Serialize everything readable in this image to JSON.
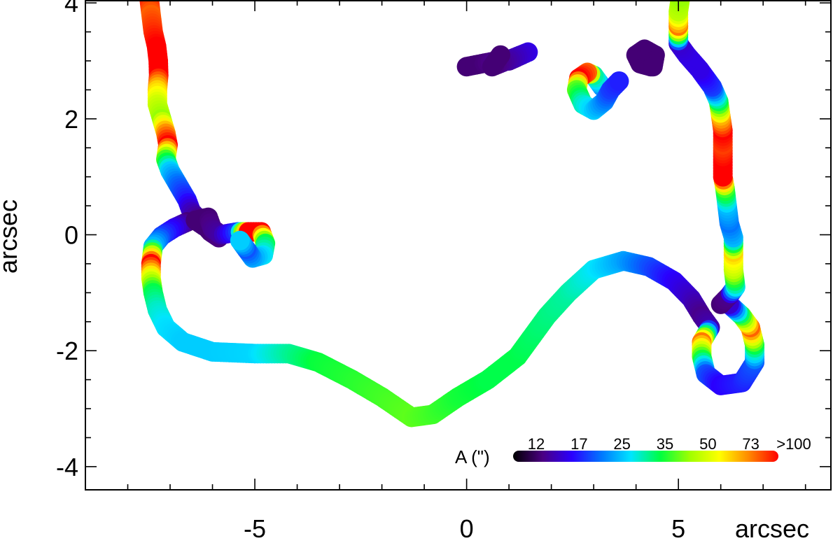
{
  "chart_data": {
    "type": "scatter",
    "xlabel": "arcsec",
    "ylabel": "arcsec",
    "xlim": [
      -9,
      8.6
    ],
    "ylim": [
      -4.4,
      4.05
    ],
    "x_ticks": [
      -5,
      0,
      5
    ],
    "x_tick_labels": [
      "-5",
      "0",
      "5"
    ],
    "y_ticks": [
      -4,
      -2,
      0,
      2,
      4
    ],
    "y_tick_labels": [
      "-4",
      "-2",
      "0",
      "2",
      "4"
    ],
    "grid": false,
    "colorbar": {
      "title": "A (\")",
      "tick_labels": [
        "12",
        "17",
        "25",
        "35",
        "50",
        "73",
        ">100"
      ],
      "colors": [
        "#000000",
        "#4b0082",
        "#2a00ff",
        "#0077ff",
        "#00e5ff",
        "#00ff40",
        "#a0ff00",
        "#ffff00",
        "#ff8800",
        "#ff0000"
      ],
      "placement": "bottom-right"
    },
    "series": [
      {
        "points": [
          [
            -7.5,
            4.1,
            1.0
          ],
          [
            -7.45,
            3.8,
            0.92
          ],
          [
            -7.4,
            3.5,
            0.96
          ],
          [
            -7.32,
            3.25,
            1.0
          ],
          [
            -7.28,
            3.0,
            1.0
          ],
          [
            -7.27,
            2.75,
            1.0
          ],
          [
            -7.3,
            2.5,
            0.82
          ],
          [
            -7.3,
            2.25,
            0.72
          ],
          [
            -7.2,
            2.0,
            0.66
          ],
          [
            -7.1,
            1.75,
            0.88
          ],
          [
            -7.05,
            1.55,
            1.0
          ],
          [
            -7.1,
            1.3,
            0.6
          ],
          [
            -7.0,
            1.1,
            0.42
          ],
          [
            -6.8,
            0.85,
            0.32
          ],
          [
            -6.6,
            0.6,
            0.25
          ],
          [
            -6.5,
            0.4,
            0.17
          ],
          [
            -6.25,
            0.22,
            0.1
          ],
          [
            -6.05,
            0.05,
            0.1
          ],
          [
            -5.85,
            -0.05,
            0.11
          ]
        ]
      },
      {
        "points": [
          [
            -6.6,
            0.22,
            0.1
          ],
          [
            -6.9,
            0.12,
            0.2
          ],
          [
            -7.2,
            -0.02,
            0.28
          ],
          [
            -7.4,
            -0.2,
            0.4
          ],
          [
            -7.45,
            -0.5,
            1.0
          ],
          [
            -7.45,
            -0.75,
            0.75
          ],
          [
            -7.4,
            -1.0,
            0.55
          ],
          [
            -7.3,
            -1.3,
            0.48
          ],
          [
            -7.1,
            -1.6,
            0.44
          ],
          [
            -6.7,
            -1.85,
            0.42
          ],
          [
            -6.0,
            -2.02,
            0.42
          ],
          [
            -5.0,
            -2.05,
            0.43
          ],
          [
            -4.2,
            -2.05,
            0.5
          ],
          [
            -3.5,
            -2.2,
            0.56
          ],
          [
            -2.7,
            -2.5,
            0.58
          ],
          [
            -2.0,
            -2.8,
            0.6
          ],
          [
            -1.3,
            -3.15,
            0.62
          ],
          [
            -0.8,
            -3.1,
            0.6
          ],
          [
            -0.2,
            -2.8,
            0.57
          ],
          [
            0.5,
            -2.5,
            0.55
          ],
          [
            1.2,
            -2.1,
            0.55
          ],
          [
            1.9,
            -1.4,
            0.52
          ],
          [
            2.4,
            -1.0,
            0.5
          ],
          [
            3.0,
            -0.6,
            0.45
          ],
          [
            3.7,
            -0.45,
            0.38
          ],
          [
            4.3,
            -0.55,
            0.3
          ],
          [
            4.9,
            -0.8,
            0.22
          ],
          [
            5.3,
            -1.1,
            0.17
          ],
          [
            5.55,
            -1.4,
            0.12
          ],
          [
            5.75,
            -1.6,
            0.15
          ],
          [
            5.55,
            -1.85,
            0.9
          ],
          [
            5.55,
            -2.1,
            0.62
          ],
          [
            5.65,
            -2.4,
            0.3
          ],
          [
            6.0,
            -2.6,
            0.22
          ],
          [
            6.5,
            -2.55,
            0.25
          ],
          [
            6.8,
            -2.2,
            0.3
          ],
          [
            6.8,
            -1.9,
            0.55
          ],
          [
            6.7,
            -1.6,
            0.92
          ],
          [
            6.5,
            -1.4,
            0.6
          ],
          [
            6.2,
            -1.2,
            0.18
          ]
        ]
      },
      {
        "points": [
          [
            6.0,
            -1.2,
            0.1
          ],
          [
            6.2,
            -1.05,
            0.12
          ],
          [
            6.35,
            -0.9,
            0.45
          ],
          [
            6.3,
            -0.6,
            0.7
          ],
          [
            6.3,
            -0.3,
            0.82
          ],
          [
            6.3,
            -0.05,
            0.4
          ],
          [
            6.2,
            0.2,
            0.33
          ],
          [
            6.15,
            0.5,
            0.4
          ],
          [
            6.1,
            0.8,
            0.6
          ],
          [
            6.05,
            1.0,
            1.0
          ],
          [
            6.05,
            1.3,
            1.0
          ],
          [
            6.05,
            1.55,
            0.95
          ],
          [
            6.05,
            1.8,
            1.0
          ],
          [
            6.0,
            2.05,
            0.85
          ],
          [
            5.95,
            2.3,
            0.55
          ],
          [
            5.8,
            2.55,
            0.28
          ],
          [
            5.5,
            2.85,
            0.2
          ],
          [
            5.2,
            3.1,
            0.2
          ],
          [
            5.0,
            3.3,
            0.18
          ],
          [
            5.0,
            3.6,
            0.9
          ],
          [
            5.0,
            3.85,
            0.7
          ],
          [
            5.05,
            4.1,
            0.66
          ]
        ]
      },
      {
        "points": [
          [
            4.35,
            2.9,
            0.1
          ],
          [
            4.1,
            2.95,
            0.1
          ],
          [
            4.0,
            3.1,
            0.1
          ],
          [
            4.2,
            3.2,
            0.1
          ],
          [
            4.45,
            3.1,
            0.1
          ],
          [
            4.4,
            2.9,
            0.1
          ]
        ]
      },
      {
        "points": [
          [
            0.0,
            2.9,
            0.1
          ],
          [
            0.35,
            2.95,
            0.1
          ],
          [
            0.7,
            3.0,
            0.12
          ],
          [
            1.0,
            3.0,
            0.13
          ],
          [
            1.3,
            3.1,
            0.15
          ],
          [
            1.45,
            3.15,
            0.2
          ],
          [
            0.6,
            2.9,
            0.1
          ],
          [
            0.8,
            3.1,
            0.1
          ]
        ]
      },
      {
        "points": [
          [
            3.2,
            2.55,
            0.35
          ],
          [
            3.0,
            2.75,
            0.5
          ],
          [
            2.85,
            2.8,
            0.92
          ],
          [
            2.65,
            2.7,
            1.0
          ],
          [
            2.6,
            2.5,
            0.62
          ],
          [
            2.75,
            2.25,
            0.48
          ],
          [
            3.0,
            2.15,
            0.42
          ],
          [
            3.25,
            2.3,
            0.35
          ],
          [
            3.4,
            2.5,
            0.28
          ],
          [
            3.6,
            2.65,
            0.25
          ]
        ]
      },
      {
        "points": [
          [
            -6.2,
            0.15,
            0.1
          ],
          [
            -6.4,
            0.25,
            0.1
          ],
          [
            -6.1,
            0.3,
            0.1
          ],
          [
            -6.0,
            0.1,
            0.12
          ],
          [
            -5.8,
            0.0,
            0.14
          ],
          [
            -5.4,
            0.05,
            0.28
          ],
          [
            -5.15,
            0.05,
            1.0
          ],
          [
            -4.85,
            0.05,
            1.0
          ],
          [
            -4.75,
            -0.15,
            0.55
          ],
          [
            -4.8,
            -0.35,
            0.45
          ],
          [
            -5.05,
            -0.4,
            0.38
          ],
          [
            -5.2,
            -0.25,
            0.3
          ],
          [
            -5.35,
            -0.1,
            0.42
          ]
        ]
      }
    ]
  }
}
